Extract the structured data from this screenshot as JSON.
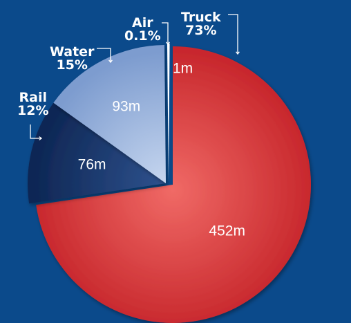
{
  "colors": {
    "background": "#0b4a8b",
    "truck": "#d8393b",
    "water": "#9bb6e0",
    "rail": "#173466",
    "air": "#ffffff",
    "leader_lines": "#ffffff"
  },
  "chart_data": {
    "type": "pie",
    "title": "",
    "legend": "none",
    "exploded": true,
    "slices": [
      {
        "name": "Truck",
        "percent_label": "73%",
        "value": 452,
        "value_label": "452m",
        "color": "#d8393b"
      },
      {
        "name": "Rail",
        "percent_label": "12%",
        "value": 76,
        "value_label": "76m",
        "color": "#173466"
      },
      {
        "name": "Water",
        "percent_label": "15%",
        "value": 93,
        "value_label": "93m",
        "color": "#9bb6e0"
      },
      {
        "name": "Air",
        "percent_label": "0.1%",
        "value": 1,
        "value_label": "1m",
        "color": "#ffffff"
      }
    ]
  }
}
